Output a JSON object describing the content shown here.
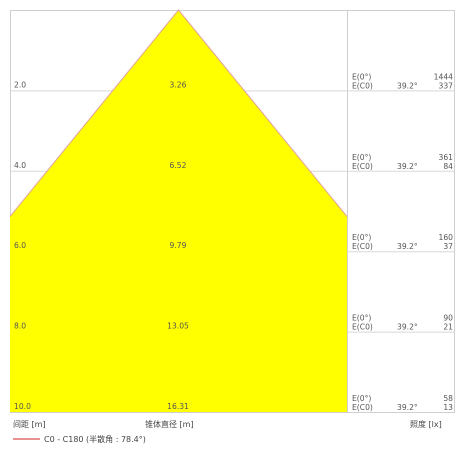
{
  "chart_data": {
    "type": "area",
    "description_series": "C0 - C180",
    "beam_half_angle_deg": 39.2,
    "x_axis_label": "锥体直径 [m]",
    "y_axis_label": "间距 [m]",
    "illuminance_label": "照度 [lx]",
    "legend": "C0 - C180 (半散角 : 78.4°)",
    "angle_label": "39.2°",
    "e0_label": "E(0°)",
    "ec0_label": "E(C0)",
    "rows": [
      {
        "distance": "2.0",
        "diameter": "3.26",
        "e0": "1444",
        "ec0": "337"
      },
      {
        "distance": "4.0",
        "diameter": "6.52",
        "e0": "361",
        "ec0": "84"
      },
      {
        "distance": "6.0",
        "diameter": "9.79",
        "e0": "160",
        "ec0": "37"
      },
      {
        "distance": "8.0",
        "diameter": "13.05",
        "e0": "90",
        "ec0": "21"
      },
      {
        "distance": "10.0",
        "diameter": "16.31",
        "e0": "58",
        "ec0": "13"
      }
    ],
    "distance_range": [
      0,
      10
    ],
    "cone_color": "#ffff00",
    "cone_edge_color": "#e6a09a",
    "legend_line_color": "#cc2222",
    "grid_color": "#d8d8d8"
  }
}
